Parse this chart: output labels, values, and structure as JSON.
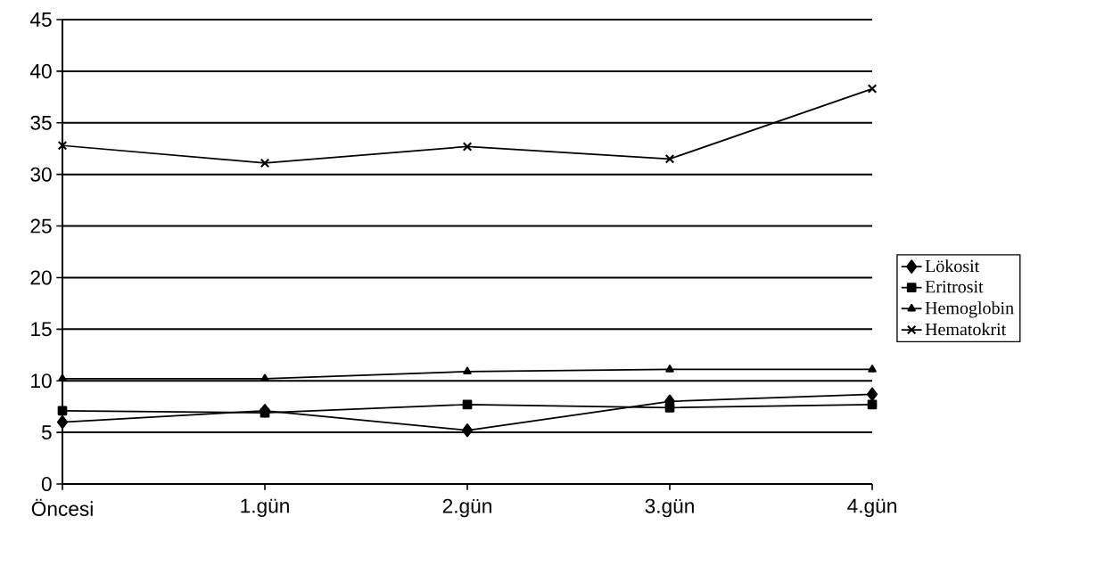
{
  "chart_data": {
    "type": "line",
    "categories": [
      "Öncesi",
      "1.gün",
      "2.gün",
      "3.gün",
      "4.gün"
    ],
    "series": [
      {
        "name": "Lökosit",
        "color": "#000000",
        "marker": "diamond",
        "values": [
          6.0,
          7.1,
          5.2,
          8.0,
          8.7
        ]
      },
      {
        "name": "Eritrosit",
        "color": "#000000",
        "marker": "square",
        "values": [
          7.1,
          6.9,
          7.7,
          7.4,
          7.7
        ]
      },
      {
        "name": "Hemoglobin",
        "color": "#000000",
        "marker": "triangle",
        "values": [
          10.2,
          10.2,
          10.9,
          11.1,
          11.1
        ]
      },
      {
        "name": "Hematokrit",
        "color": "#000000",
        "marker": "cross",
        "values": [
          32.8,
          31.1,
          32.7,
          31.5,
          38.3
        ]
      }
    ],
    "ylim": [
      0,
      45
    ],
    "yticks": [
      0,
      5,
      10,
      15,
      20,
      25,
      30,
      35,
      40,
      45
    ],
    "grid": "y",
    "legend": "right",
    "line_style": "solid"
  }
}
